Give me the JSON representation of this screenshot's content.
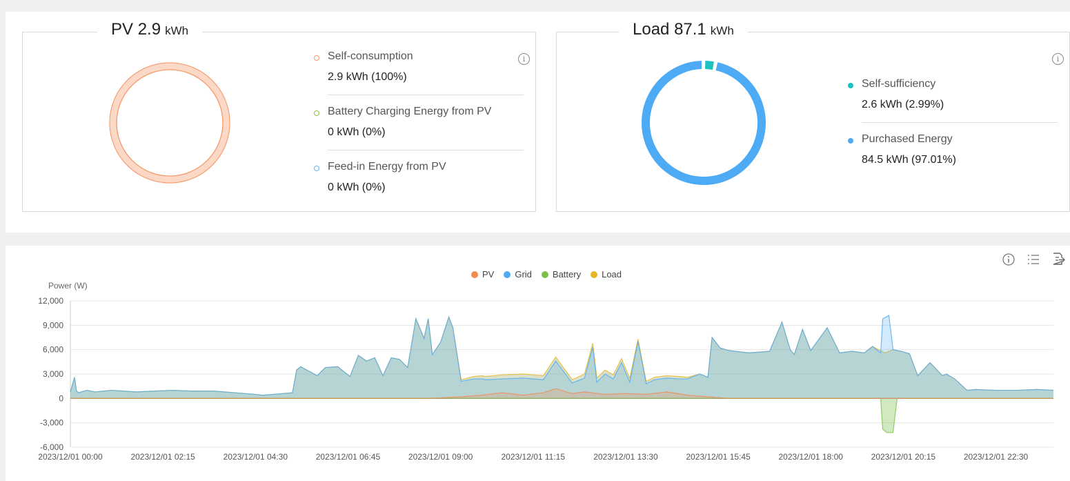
{
  "pv_card": {
    "title_prefix": "PV",
    "value": "2.9",
    "unit": "kWh",
    "items": [
      {
        "label": "Self-consumption",
        "value": "2.9 kWh (100%)",
        "color": "#f59a6b"
      },
      {
        "label": "Battery Charging Energy from PV",
        "value": "0 kWh (0%)",
        "color": "#8bc34a"
      },
      {
        "label": "Feed-in Energy from PV",
        "value": "0 kWh (0%)",
        "color": "#64b5f6"
      }
    ]
  },
  "load_card": {
    "title_prefix": "Load",
    "value": "87.1",
    "unit": "kWh",
    "items": [
      {
        "label": "Self-sufficiency",
        "value": "2.6 kWh (2.99%)",
        "color": "#1cc1c1"
      },
      {
        "label": "Purchased Energy",
        "value": "84.5 kWh (97.01%)",
        "color": "#4daaf5"
      }
    ]
  },
  "chart_toolbar": {
    "info_icon": "info-icon",
    "list_icon": "list-icon",
    "export_icon": "export-icon"
  },
  "chart_data": {
    "type": "area",
    "ylabel": "Power (W)",
    "ylim": [
      -6000,
      12000
    ],
    "yticks": [
      "12,000",
      "9,000",
      "6,000",
      "3,000",
      "0",
      "-3,000",
      "-6,000"
    ],
    "xticks": [
      "2023/12/01 00:00",
      "2023/12/01 02:15",
      "2023/12/01 04:30",
      "2023/12/01 06:45",
      "2023/12/01 09:00",
      "2023/12/01 11:15",
      "2023/12/01 13:30",
      "2023/12/01 15:45",
      "2023/12/01 18:00",
      "2023/12/01 20:15",
      "2023/12/01 22:30"
    ],
    "x_range_hours": [
      0,
      23.9
    ],
    "legend": [
      "PV",
      "Grid",
      "Battery",
      "Load"
    ],
    "colors": {
      "PV": "#f28a4e",
      "Grid": "#4daaf5",
      "Battery": "#7cc04a",
      "Load": "#e8b520"
    },
    "series": [
      {
        "name": "Load",
        "x": [
          0.0,
          0.1,
          0.15,
          0.2,
          0.4,
          0.6,
          0.8,
          1.0,
          1.3,
          1.6,
          2.0,
          2.5,
          3.0,
          3.5,
          4.0,
          4.5,
          4.65,
          4.7,
          5.4,
          5.5,
          5.6,
          6.0,
          6.2,
          6.5,
          6.8,
          7.0,
          7.2,
          7.4,
          7.6,
          7.8,
          8.0,
          8.2,
          8.4,
          8.6,
          8.7,
          8.8,
          9.0,
          9.2,
          9.3,
          9.5,
          9.8,
          10.0,
          10.1,
          10.5,
          11.0,
          11.5,
          11.8,
          12.2,
          12.5,
          12.7,
          12.8,
          13.0,
          13.2,
          13.4,
          13.6,
          13.8,
          14.0,
          14.2,
          14.5,
          14.8,
          15.0,
          15.3,
          15.5,
          15.6,
          15.8,
          16.0,
          16.5,
          17.0,
          17.3,
          17.5,
          17.6,
          17.8,
          18.0,
          18.4,
          18.7,
          19.0,
          19.3,
          19.5,
          19.8,
          20.0,
          20.2,
          20.4,
          20.6,
          20.9,
          21.2,
          21.3,
          21.5,
          21.8,
          22.0,
          22.5,
          23.0,
          23.5,
          23.9
        ],
        "values": [
          800,
          2600,
          900,
          700,
          1000,
          800,
          900,
          1000,
          900,
          800,
          900,
          1000,
          900,
          900,
          700,
          500,
          400,
          400,
          700,
          3500,
          3900,
          2800,
          3800,
          3900,
          2700,
          5300,
          4600,
          5000,
          2800,
          5000,
          4800,
          3800,
          9800,
          7400,
          9800,
          5400,
          6900,
          10000,
          8700,
          2300,
          2700,
          2800,
          2700,
          2900,
          3000,
          2800,
          5100,
          2300,
          3000,
          6800,
          2500,
          3500,
          2900,
          4900,
          2500,
          7300,
          2100,
          2600,
          2800,
          2700,
          2600,
          3000,
          2600,
          7500,
          6200,
          5900,
          5600,
          5800,
          9400,
          6000,
          5400,
          8500,
          5900,
          8700,
          5600,
          5800,
          5600,
          6400,
          5600,
          6000,
          5800,
          5500,
          2800,
          4400,
          2800,
          3000,
          2400,
          1000,
          1100,
          1000,
          1000,
          1100,
          1000
        ]
      },
      {
        "name": "Grid",
        "x": [
          0.0,
          0.1,
          0.15,
          0.2,
          0.4,
          0.6,
          0.8,
          1.0,
          1.3,
          1.6,
          2.0,
          2.5,
          3.0,
          3.5,
          4.0,
          4.5,
          4.65,
          4.7,
          5.4,
          5.5,
          5.6,
          6.0,
          6.2,
          6.5,
          6.8,
          7.0,
          7.2,
          7.4,
          7.6,
          7.8,
          8.0,
          8.2,
          8.4,
          8.6,
          8.7,
          8.8,
          9.0,
          9.2,
          9.3,
          9.5,
          9.8,
          10.0,
          10.1,
          10.5,
          11.0,
          11.5,
          11.8,
          12.2,
          12.5,
          12.7,
          12.8,
          13.0,
          13.2,
          13.4,
          13.6,
          13.8,
          14.0,
          14.2,
          14.5,
          14.8,
          15.0,
          15.3,
          15.5,
          15.6,
          15.8,
          16.0,
          16.5,
          17.0,
          17.3,
          17.5,
          17.6,
          17.8,
          18.0,
          18.4,
          18.7,
          19.0,
          19.3,
          19.5,
          19.7,
          19.75,
          19.9,
          20.0,
          20.2,
          20.4,
          20.6,
          20.9,
          21.2,
          21.3,
          21.5,
          21.8,
          22.0,
          22.5,
          23.0,
          23.5,
          23.9
        ],
        "values": [
          800,
          2600,
          900,
          700,
          1000,
          800,
          900,
          1000,
          900,
          800,
          900,
          1000,
          900,
          900,
          700,
          500,
          400,
          400,
          700,
          3500,
          3900,
          2800,
          3800,
          3900,
          2700,
          5300,
          4600,
          5000,
          2800,
          5000,
          4800,
          3800,
          9800,
          7400,
          9800,
          5400,
          6900,
          10000,
          8700,
          2100,
          2400,
          2400,
          2300,
          2400,
          2500,
          2300,
          4600,
          1900,
          2500,
          6300,
          2000,
          3000,
          2400,
          4400,
          2000,
          7000,
          1800,
          2300,
          2500,
          2400,
          2400,
          3000,
          2600,
          7500,
          6200,
          5900,
          5600,
          5800,
          9400,
          6000,
          5400,
          8500,
          5900,
          8700,
          5600,
          5800,
          5600,
          6400,
          5600,
          9800,
          10200,
          6000,
          5800,
          5500,
          2800,
          4400,
          2800,
          3000,
          2400,
          1000,
          1100,
          1000,
          1000,
          1100,
          1000
        ]
      },
      {
        "name": "Battery",
        "x": [
          0,
          19.7,
          19.75,
          19.85,
          20.0,
          20.1,
          23.9
        ],
        "values": [
          0,
          0,
          -3800,
          -4200,
          -4200,
          0,
          0
        ]
      },
      {
        "name": "PV",
        "x": [
          0,
          8.7,
          9.5,
          10.0,
          10.5,
          11.0,
          11.5,
          11.8,
          12.2,
          12.5,
          13.0,
          13.5,
          14.0,
          14.5,
          15.0,
          15.5,
          16.0,
          23.9
        ],
        "values": [
          0,
          0,
          200,
          400,
          700,
          400,
          700,
          1200,
          600,
          800,
          500,
          600,
          500,
          800,
          400,
          200,
          0,
          0
        ]
      }
    ]
  }
}
